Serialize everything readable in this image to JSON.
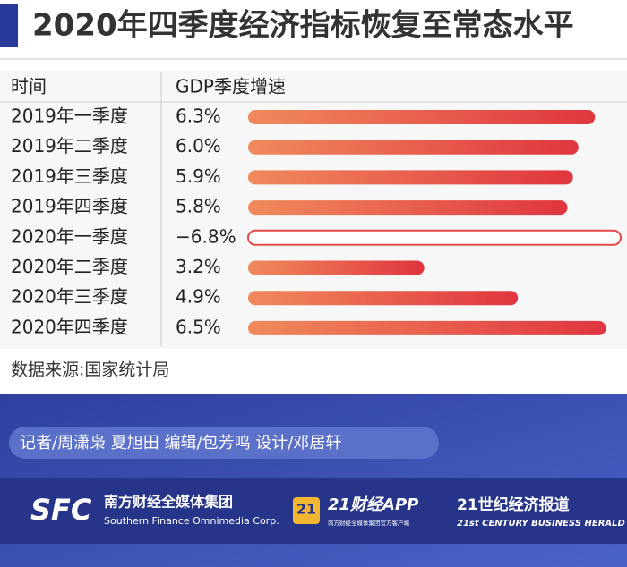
{
  "chart_data": {
    "type": "bar",
    "title": "2020年四季度经济指标恢复至常态水平",
    "header": [
      "时间",
      "GDP季度增速"
    ],
    "categories": [
      "2019年一季度",
      "2019年二季度",
      "2019年三季度",
      "2019年四季度",
      "2020年一季度",
      "2020年二季度",
      "2020年三季度",
      "2020年四季度"
    ],
    "values": [
      6.3,
      6.0,
      5.9,
      5.8,
      -6.8,
      3.2,
      4.9,
      6.5
    ],
    "value_labels": [
      "6.3%",
      "6.0%",
      "5.9%",
      "5.8%",
      "−6.8%",
      "3.2%",
      "4.9%",
      "6.5%"
    ],
    "color": "#e5484a",
    "source": "数据来源:国家统计局",
    "credits": "记者/周潇枭 夏旭田  编辑/包芳鸣  设计/邓居轩",
    "logos": {
      "sfc": "SFC",
      "sfc_name": "南方财经全媒体集团",
      "sfc_en": "Southern Finance Omnimedia Corp.",
      "app_badge": "21",
      "app_name": "21财经APP",
      "app_sub": "南方财经全媒体集团官方客户端",
      "herald": "21世纪经济报道",
      "herald_en": "21st CENTURY BUSINESS HERALD"
    }
  }
}
